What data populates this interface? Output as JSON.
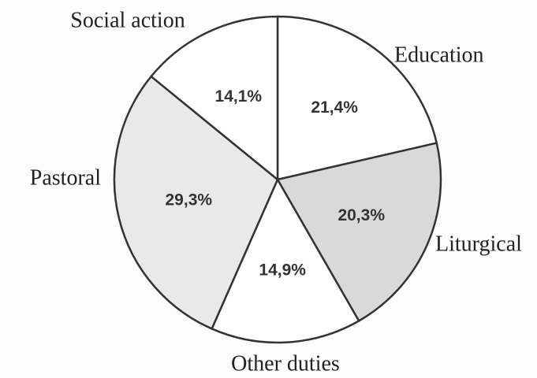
{
  "chart_data": {
    "type": "pie",
    "categories": [
      "Education",
      "Liturgical",
      "Other duties",
      "Pastoral",
      "Social action"
    ],
    "values": [
      21.4,
      20.3,
      14.9,
      29.3,
      14.1
    ],
    "value_labels": [
      "21,4%",
      "20,3%",
      "14,9%",
      "29,3%",
      "14,1%"
    ],
    "colors": [
      "#ffffff",
      "#d9d9d9",
      "#ffffff",
      "#e9e9e9",
      "#ffffff"
    ]
  }
}
